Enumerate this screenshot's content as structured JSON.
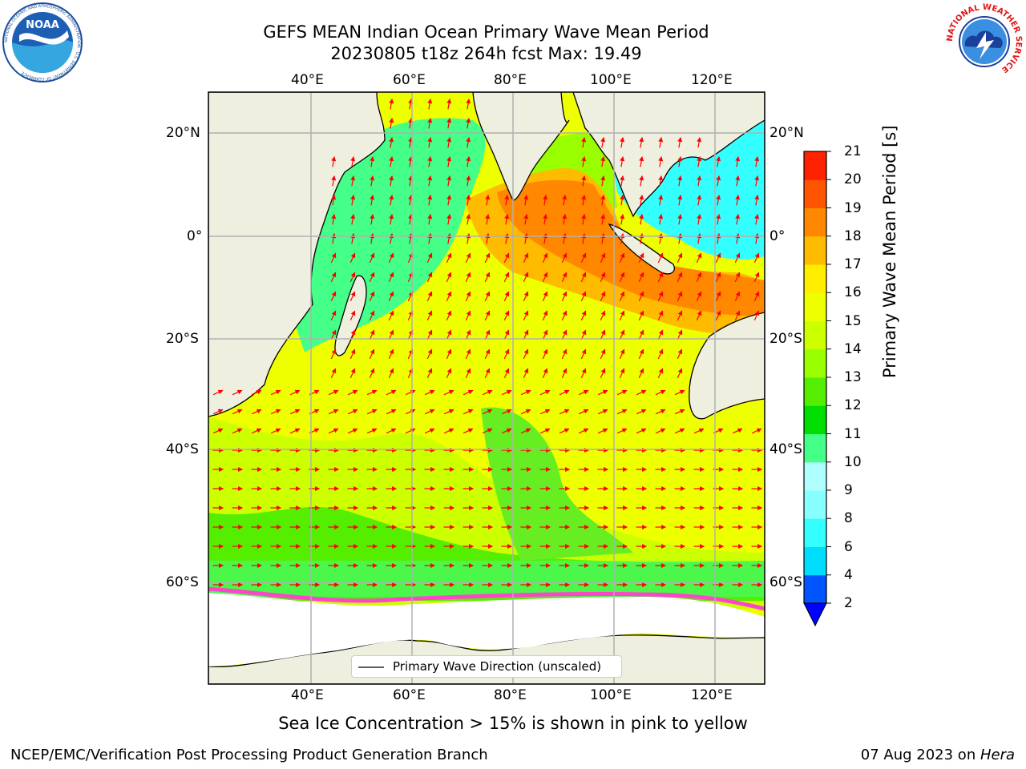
{
  "title": {
    "line1": "GEFS MEAN Indian Ocean Primary Wave Mean Period",
    "line2": "20230805 t18z 264h fcst   Max: 19.49"
  },
  "map": {
    "lon_ticks": [
      "40°E",
      "60°E",
      "80°E",
      "100°E",
      "120°E"
    ],
    "lat_ticks": [
      "20°N",
      "0°",
      "20°S",
      "40°S",
      "60°S"
    ],
    "legend_label": "Primary Wave Direction (unscaled)",
    "colors": {
      "land": "#efefdf",
      "ice": "#ffffff",
      "arrow": "#ff0000",
      "sea_ice_edge": "#ff44cc"
    }
  },
  "colorbar": {
    "label": "Primary Wave Mean Period [s]",
    "tick_labels": [
      "2",
      "4",
      "6",
      "8",
      "9",
      "10",
      "11",
      "12",
      "13",
      "14",
      "15",
      "16",
      "17",
      "18",
      "19",
      "20",
      "21"
    ],
    "colors": [
      "#0055ff",
      "#00ddff",
      "#33ffff",
      "#88ffff",
      "#b0ffff",
      "#44ff88",
      "#00dd00",
      "#55ee00",
      "#99ff00",
      "#ccff00",
      "#eeff00",
      "#ffee00",
      "#ffbb00",
      "#ff8800",
      "#ff5500",
      "#ff2200"
    ],
    "under_color": "#0000ff"
  },
  "note": "Sea Ice Concentration > 15% is shown in pink to yellow",
  "footer": {
    "left": "NCEP/EMC/Verification Post Processing Product Generation Branch",
    "date": "07 Aug 2023 on ",
    "host": "Hera"
  },
  "logos": {
    "noaa": "NOAA",
    "noaa_ring": "NATIONAL OCEANIC AND ATMOSPHERIC ADMINISTRATION · U.S. DEPARTMENT OF COMMERCE",
    "nws_ring": "NATIONAL WEATHER SERVICE"
  }
}
